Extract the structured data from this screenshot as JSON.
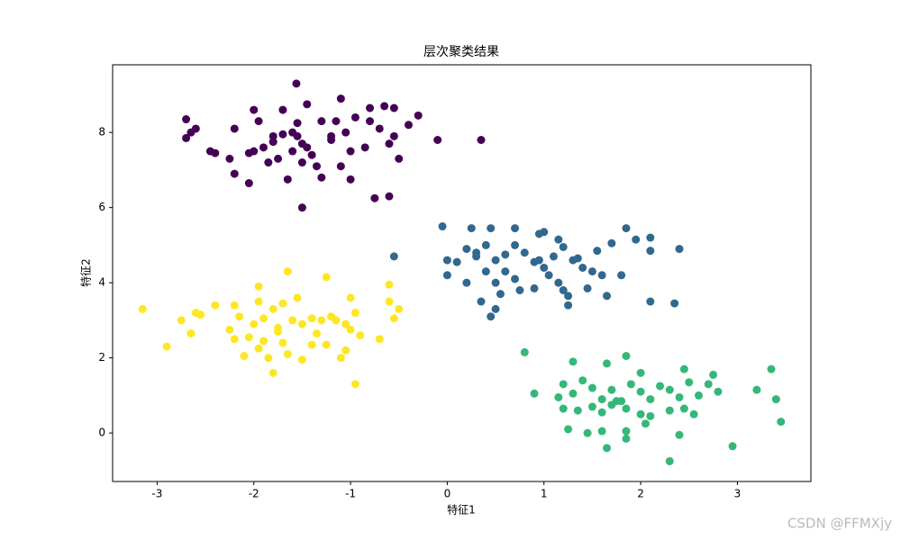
{
  "chart_data": {
    "type": "scatter",
    "title": "层次聚类结果",
    "x_label": "特征1",
    "y_label": "特征2",
    "xlim": [
      -3.46,
      3.76
    ],
    "ylim": [
      -1.29,
      9.8
    ],
    "xticks": [
      -3,
      -2,
      -1,
      0,
      1,
      2,
      3
    ],
    "yticks": [
      0,
      2,
      4,
      6,
      8
    ],
    "grid": false,
    "series": [
      {
        "color": "#440154",
        "x": [
          -1.56,
          -1.1,
          -1.7,
          -2.0,
          -2.7,
          -2.6,
          -2.65,
          -2.7,
          -2.45,
          -2.4,
          -2.2,
          -2.25,
          -2.2,
          -2.05,
          -2.0,
          -1.95,
          -1.8,
          -1.8,
          -1.9,
          -1.75,
          -1.7,
          -1.6,
          -1.55,
          -1.5,
          -1.45,
          -1.4,
          -1.35,
          -1.5,
          -1.55,
          -1.45,
          -1.3,
          -1.2,
          -1.15,
          -1.05,
          -1.0,
          -0.95,
          -0.85,
          -0.8,
          -0.7,
          -0.65,
          -0.6,
          -0.55,
          -0.5,
          -0.4,
          -0.3,
          -0.1,
          0.35,
          -0.6,
          -0.75,
          -1.0,
          -1.1,
          -1.3,
          -1.5,
          -1.65,
          -1.85,
          -2.05,
          -0.55,
          -1.2,
          -0.8,
          -1.6
        ],
        "values": [
          9.3,
          8.9,
          8.6,
          8.6,
          8.35,
          8.1,
          8.0,
          7.85,
          7.5,
          7.45,
          8.1,
          7.3,
          6.9,
          7.45,
          7.5,
          8.3,
          7.9,
          7.75,
          7.6,
          7.3,
          7.95,
          7.5,
          7.9,
          7.7,
          7.6,
          7.4,
          7.1,
          7.2,
          8.25,
          8.75,
          8.3,
          7.9,
          8.3,
          8.0,
          7.5,
          8.4,
          7.6,
          8.3,
          8.1,
          8.7,
          7.7,
          7.9,
          7.3,
          8.2,
          8.45,
          7.8,
          7.8,
          6.3,
          6.25,
          6.75,
          7.1,
          6.8,
          6.0,
          6.75,
          7.2,
          6.65,
          8.65,
          7.8,
          8.65,
          8.0
        ]
      },
      {
        "color": "#31688e",
        "x": [
          -0.55,
          -0.05,
          0.25,
          0.45,
          0.7,
          0.95,
          1.0,
          1.15,
          1.85,
          2.1,
          1.7,
          2.1,
          2.4,
          1.95,
          0.0,
          0.1,
          0.2,
          0.3,
          0.4,
          0.5,
          0.6,
          0.7,
          0.8,
          0.9,
          1.0,
          1.1,
          1.2,
          1.3,
          1.4,
          1.5,
          1.6,
          1.8,
          0.0,
          0.2,
          0.4,
          0.5,
          0.55,
          0.6,
          0.7,
          0.75,
          0.9,
          1.05,
          1.2,
          1.25,
          1.25,
          1.45,
          1.65,
          2.1,
          2.35,
          0.45,
          0.5,
          0.35,
          1.35,
          1.55,
          0.3,
          1.15,
          0.95
        ],
        "values": [
          4.7,
          5.5,
          5.45,
          5.45,
          5.45,
          5.3,
          5.35,
          5.15,
          5.45,
          5.2,
          5.05,
          4.85,
          4.9,
          5.15,
          4.6,
          4.55,
          4.9,
          4.8,
          5.0,
          4.6,
          4.75,
          5.0,
          4.8,
          4.55,
          4.4,
          4.7,
          4.95,
          4.6,
          4.4,
          4.3,
          4.2,
          4.2,
          4.2,
          4.0,
          4.3,
          4.0,
          3.7,
          4.3,
          4.1,
          3.8,
          3.85,
          4.2,
          3.8,
          3.65,
          3.4,
          3.85,
          3.65,
          3.5,
          3.45,
          3.1,
          3.3,
          3.5,
          4.65,
          4.85,
          4.7,
          4.0,
          4.6
        ]
      },
      {
        "color": "#35b779",
        "x": [
          0.8,
          1.3,
          1.65,
          1.85,
          2.0,
          2.45,
          2.75,
          3.35,
          3.2,
          3.4,
          3.45,
          2.95,
          2.3,
          1.65,
          0.9,
          1.15,
          1.2,
          1.3,
          1.4,
          1.5,
          1.6,
          1.7,
          1.8,
          1.9,
          2.0,
          2.1,
          2.2,
          2.3,
          2.4,
          2.5,
          2.6,
          2.7,
          2.8,
          1.2,
          1.35,
          1.5,
          1.6,
          1.7,
          1.85,
          2.0,
          2.1,
          2.3,
          2.45,
          2.55,
          2.05,
          1.25,
          1.45,
          1.6,
          1.85,
          2.4,
          1.85,
          1.75
        ],
        "values": [
          2.15,
          1.9,
          1.85,
          2.05,
          1.6,
          1.7,
          1.55,
          1.7,
          1.15,
          0.9,
          0.3,
          -0.35,
          -0.75,
          -0.4,
          1.05,
          0.95,
          1.3,
          1.05,
          1.4,
          1.2,
          0.9,
          1.15,
          0.85,
          1.3,
          1.1,
          0.9,
          1.25,
          1.15,
          0.95,
          1.35,
          1.0,
          1.3,
          1.1,
          0.65,
          0.6,
          0.7,
          0.55,
          0.75,
          0.65,
          0.5,
          0.45,
          0.6,
          0.65,
          0.5,
          0.25,
          0.1,
          0.0,
          0.05,
          0.05,
          -0.05,
          -0.15,
          0.85
        ]
      },
      {
        "color": "#fde725",
        "x": [
          -3.15,
          -2.75,
          -2.9,
          -2.65,
          -2.6,
          -2.55,
          -2.4,
          -2.2,
          -2.25,
          -2.2,
          -2.15,
          -2.0,
          -1.95,
          -1.95,
          -1.9,
          -1.8,
          -1.75,
          -1.7,
          -1.65,
          -1.6,
          -1.55,
          -1.5,
          -1.4,
          -1.35,
          -1.3,
          -1.2,
          -1.15,
          -1.05,
          -1.0,
          -1.0,
          -0.95,
          -0.9,
          -0.7,
          -0.6,
          -0.55,
          -0.5,
          -0.6,
          -1.25,
          -2.1,
          -1.95,
          -1.85,
          -1.8,
          -1.7,
          -1.65,
          -1.5,
          -1.4,
          -1.25,
          -1.1,
          -1.05,
          -0.95,
          -2.05,
          -1.75,
          -1.9
        ],
        "values": [
          3.3,
          3.0,
          2.3,
          2.65,
          3.2,
          3.15,
          3.4,
          3.4,
          2.75,
          2.5,
          3.1,
          2.9,
          3.5,
          3.9,
          3.05,
          3.3,
          2.8,
          3.45,
          4.3,
          3.0,
          3.6,
          2.9,
          3.05,
          2.65,
          3.0,
          3.1,
          3.0,
          2.9,
          3.6,
          2.75,
          3.2,
          2.6,
          2.5,
          3.95,
          3.05,
          3.3,
          3.5,
          4.15,
          2.05,
          2.25,
          2.0,
          1.6,
          2.4,
          2.1,
          1.95,
          2.35,
          2.35,
          2.0,
          2.2,
          1.3,
          2.55,
          2.7,
          2.45
        ]
      }
    ]
  },
  "watermark": "CSDN @FFMXjy"
}
